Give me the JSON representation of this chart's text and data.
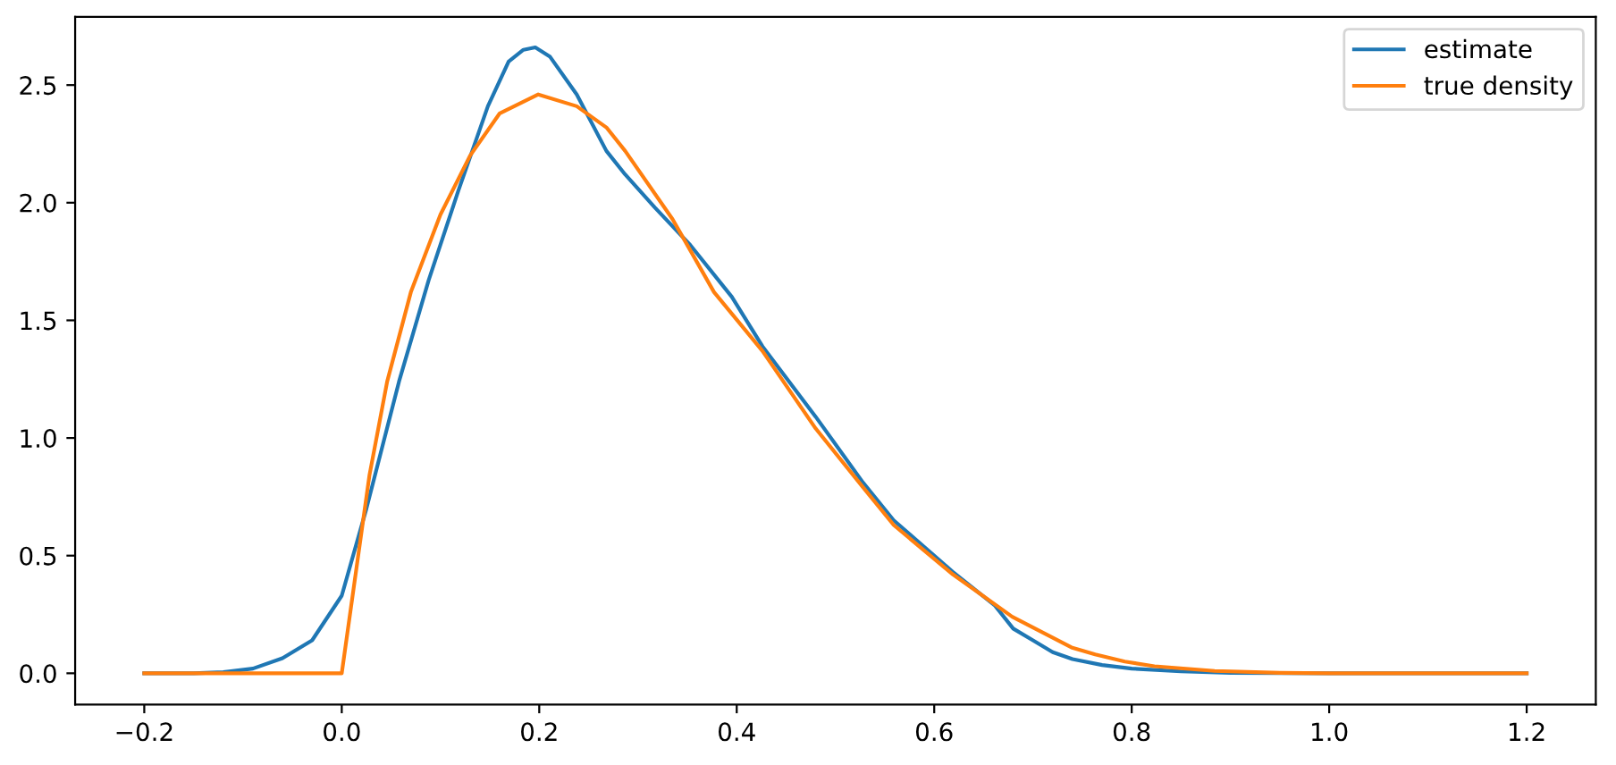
{
  "chart_data": {
    "type": "line",
    "xlim": [
      -0.27,
      1.27
    ],
    "ylim": [
      -0.133,
      2.79
    ],
    "xticks": [
      {
        "value": -0.2,
        "label": "−0.2"
      },
      {
        "value": 0,
        "label": "0.0"
      },
      0.2,
      0.4,
      0.6,
      0.8,
      {
        "value": 1,
        "label": "1.0"
      },
      1.2
    ],
    "yticks": [
      {
        "value": 0,
        "label": "0.0"
      },
      0.5,
      {
        "value": 1,
        "label": "1.0"
      },
      1.5,
      {
        "value": 2,
        "label": "2.0"
      },
      2.5
    ],
    "legend": "top right",
    "grid": false,
    "series": [
      {
        "name": "estimate",
        "color": "#1f77b4",
        "x": [
          -0.2,
          -0.15,
          -0.12,
          -0.09,
          -0.06,
          -0.03,
          0.0,
          0.025,
          0.058,
          0.088,
          0.118,
          0.148,
          0.169,
          0.184,
          0.196,
          0.211,
          0.238,
          0.268,
          0.287,
          0.317,
          0.353,
          0.395,
          0.426,
          0.48,
          0.528,
          0.559,
          0.619,
          0.661,
          0.68,
          0.7,
          0.72,
          0.74,
          0.77,
          0.8,
          0.85,
          0.9,
          1.0,
          1.2
        ],
        "values": [
          0,
          0,
          0.005,
          0.02,
          0.064,
          0.14,
          0.33,
          0.7,
          1.24,
          1.67,
          2.05,
          2.41,
          2.6,
          2.65,
          2.66,
          2.62,
          2.46,
          2.22,
          2.12,
          1.98,
          1.82,
          1.6,
          1.39,
          1.09,
          0.81,
          0.65,
          0.43,
          0.29,
          0.19,
          0.14,
          0.09,
          0.06,
          0.035,
          0.02,
          0.008,
          0.002,
          0,
          0
        ]
      },
      {
        "name": "true density",
        "color": "#ff7f0e",
        "x": [
          -0.2,
          0.0,
          0.016,
          0.028,
          0.046,
          0.07,
          0.1,
          0.13,
          0.16,
          0.199,
          0.238,
          0.268,
          0.287,
          0.335,
          0.377,
          0.426,
          0.48,
          0.528,
          0.559,
          0.619,
          0.679,
          0.739,
          0.763,
          0.793,
          0.823,
          0.884,
          0.95,
          1.0,
          1.2
        ],
        "values": [
          0,
          0,
          0.48,
          0.84,
          1.24,
          1.62,
          1.95,
          2.2,
          2.38,
          2.46,
          2.41,
          2.32,
          2.22,
          1.93,
          1.62,
          1.37,
          1.04,
          0.79,
          0.63,
          0.42,
          0.24,
          0.11,
          0.08,
          0.05,
          0.03,
          0.01,
          0.002,
          0,
          0
        ]
      }
    ]
  }
}
